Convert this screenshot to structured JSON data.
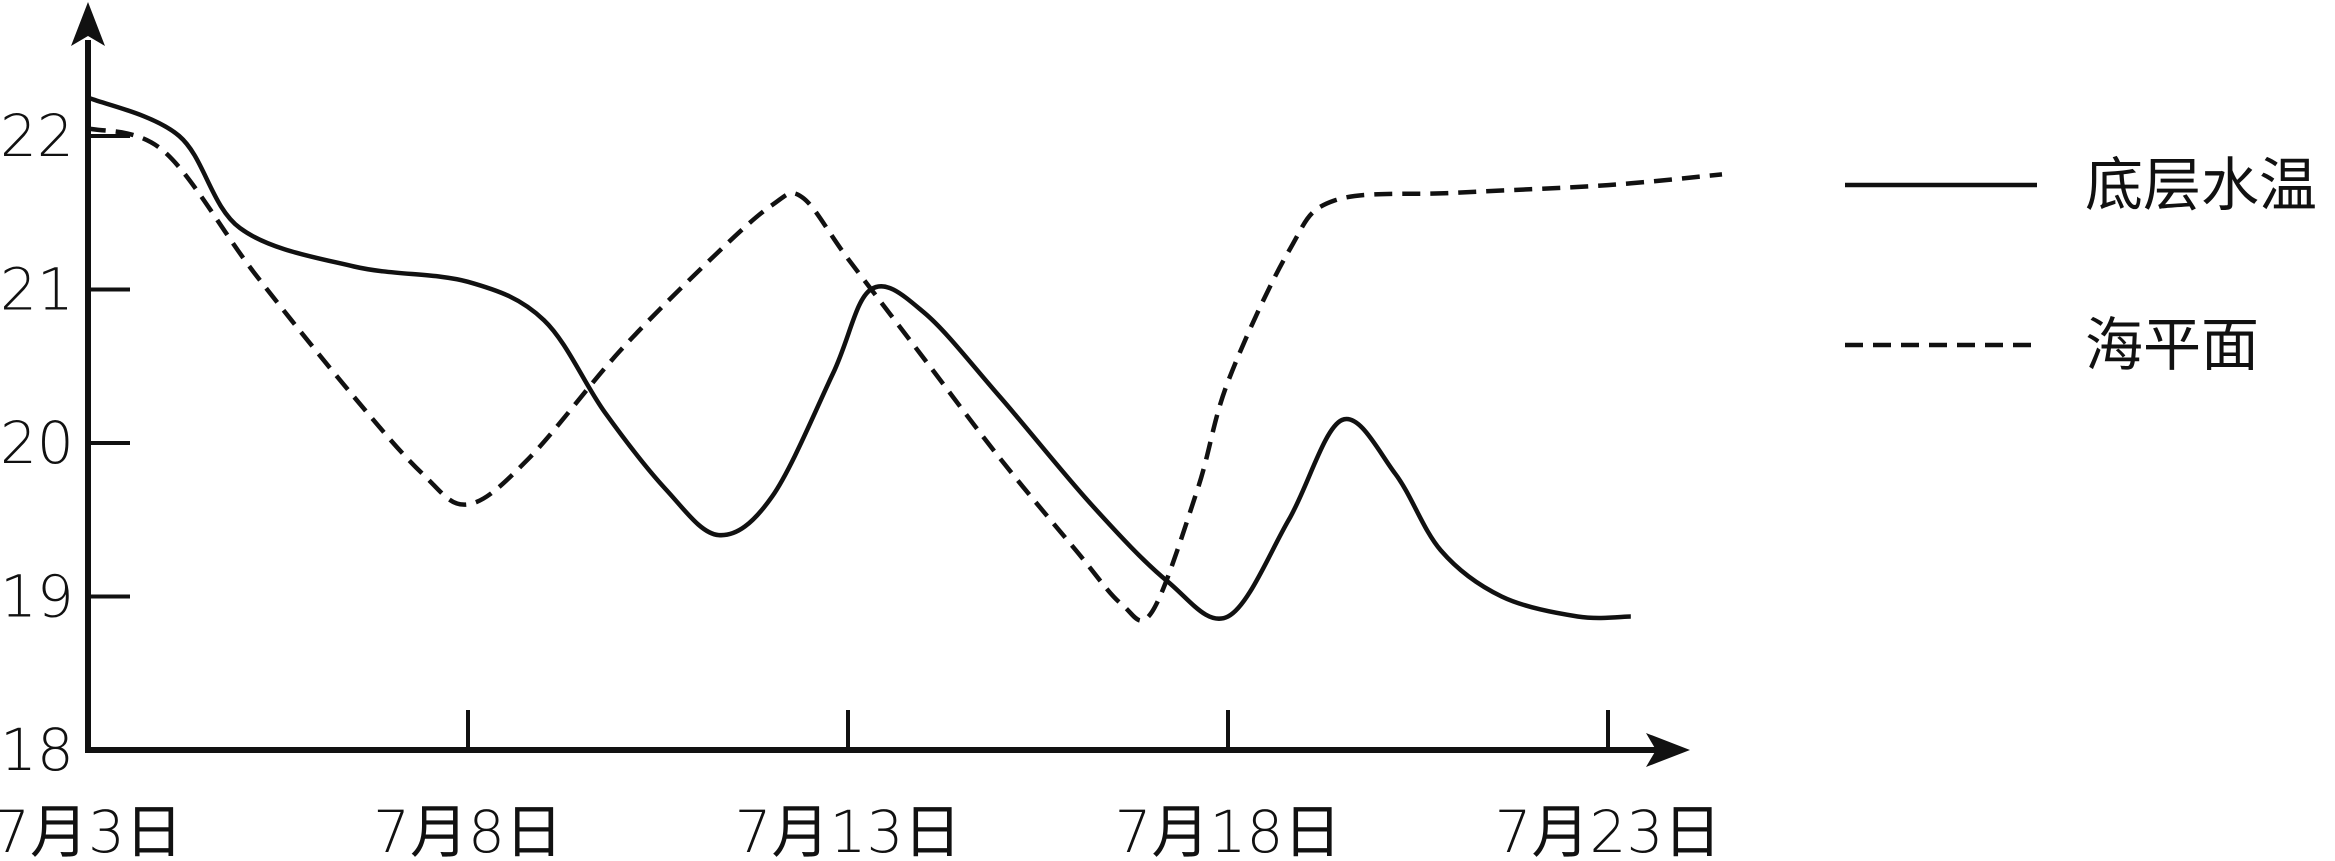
{
  "chart_data": {
    "type": "line",
    "title": "",
    "xlabel": "",
    "ylabel": "",
    "ylim": [
      18,
      22.5
    ],
    "x_ticks": [
      {
        "day": 0,
        "label": "7月3日"
      },
      {
        "day": 5,
        "label": "7月8日"
      },
      {
        "day": 10,
        "label": "7月13日"
      },
      {
        "day": 15,
        "label": "7月18日"
      },
      {
        "day": 20,
        "label": "7月23日"
      }
    ],
    "y_ticks": [
      {
        "value": 18,
        "label": "18"
      },
      {
        "value": 19,
        "label": "19"
      },
      {
        "value": 20,
        "label": "20"
      },
      {
        "value": 21,
        "label": "21"
      },
      {
        "value": 22,
        "label": "22"
      }
    ],
    "legend_position": "right",
    "grid": false,
    "series": [
      {
        "name": "底层水温",
        "style": "solid",
        "color": "#111111",
        "points": [
          {
            "x": 0,
            "y": 22.25
          },
          {
            "x": 1.2,
            "y": 22.0
          },
          {
            "x": 2.0,
            "y": 21.4
          },
          {
            "x": 3.5,
            "y": 21.15
          },
          {
            "x": 5.0,
            "y": 21.05
          },
          {
            "x": 6.0,
            "y": 20.8
          },
          {
            "x": 6.8,
            "y": 20.2
          },
          {
            "x": 7.6,
            "y": 19.7
          },
          {
            "x": 8.3,
            "y": 19.4
          },
          {
            "x": 9.0,
            "y": 19.65
          },
          {
            "x": 9.8,
            "y": 20.45
          },
          {
            "x": 10.3,
            "y": 21.0
          },
          {
            "x": 11.0,
            "y": 20.85
          },
          {
            "x": 12.0,
            "y": 20.3
          },
          {
            "x": 13.2,
            "y": 19.6
          },
          {
            "x": 14.2,
            "y": 19.1
          },
          {
            "x": 15.0,
            "y": 18.87
          },
          {
            "x": 15.8,
            "y": 19.5
          },
          {
            "x": 16.5,
            "y": 20.15
          },
          {
            "x": 17.2,
            "y": 19.8
          },
          {
            "x": 17.8,
            "y": 19.3
          },
          {
            "x": 18.6,
            "y": 19.0
          },
          {
            "x": 19.6,
            "y": 18.87
          },
          {
            "x": 20.3,
            "y": 18.87
          }
        ]
      },
      {
        "name": "海平面",
        "style": "dashed",
        "color": "#111111",
        "points": [
          {
            "x": 0,
            "y": 22.05
          },
          {
            "x": 1.0,
            "y": 21.9
          },
          {
            "x": 2.2,
            "y": 21.1
          },
          {
            "x": 3.5,
            "y": 20.3
          },
          {
            "x": 4.4,
            "y": 19.8
          },
          {
            "x": 5.0,
            "y": 19.6
          },
          {
            "x": 5.8,
            "y": 19.9
          },
          {
            "x": 7.0,
            "y": 20.6
          },
          {
            "x": 8.2,
            "y": 21.2
          },
          {
            "x": 9.0,
            "y": 21.55
          },
          {
            "x": 9.4,
            "y": 21.6
          },
          {
            "x": 10.0,
            "y": 21.2
          },
          {
            "x": 11.0,
            "y": 20.55
          },
          {
            "x": 12.0,
            "y": 19.9
          },
          {
            "x": 13.0,
            "y": 19.3
          },
          {
            "x": 13.6,
            "y": 18.95
          },
          {
            "x": 14.0,
            "y": 18.9
          },
          {
            "x": 14.6,
            "y": 19.7
          },
          {
            "x": 15.0,
            "y": 20.4
          },
          {
            "x": 15.8,
            "y": 21.25
          },
          {
            "x": 16.4,
            "y": 21.58
          },
          {
            "x": 18.0,
            "y": 21.63
          },
          {
            "x": 20.0,
            "y": 21.68
          },
          {
            "x": 21.5,
            "y": 21.75
          }
        ]
      }
    ]
  }
}
